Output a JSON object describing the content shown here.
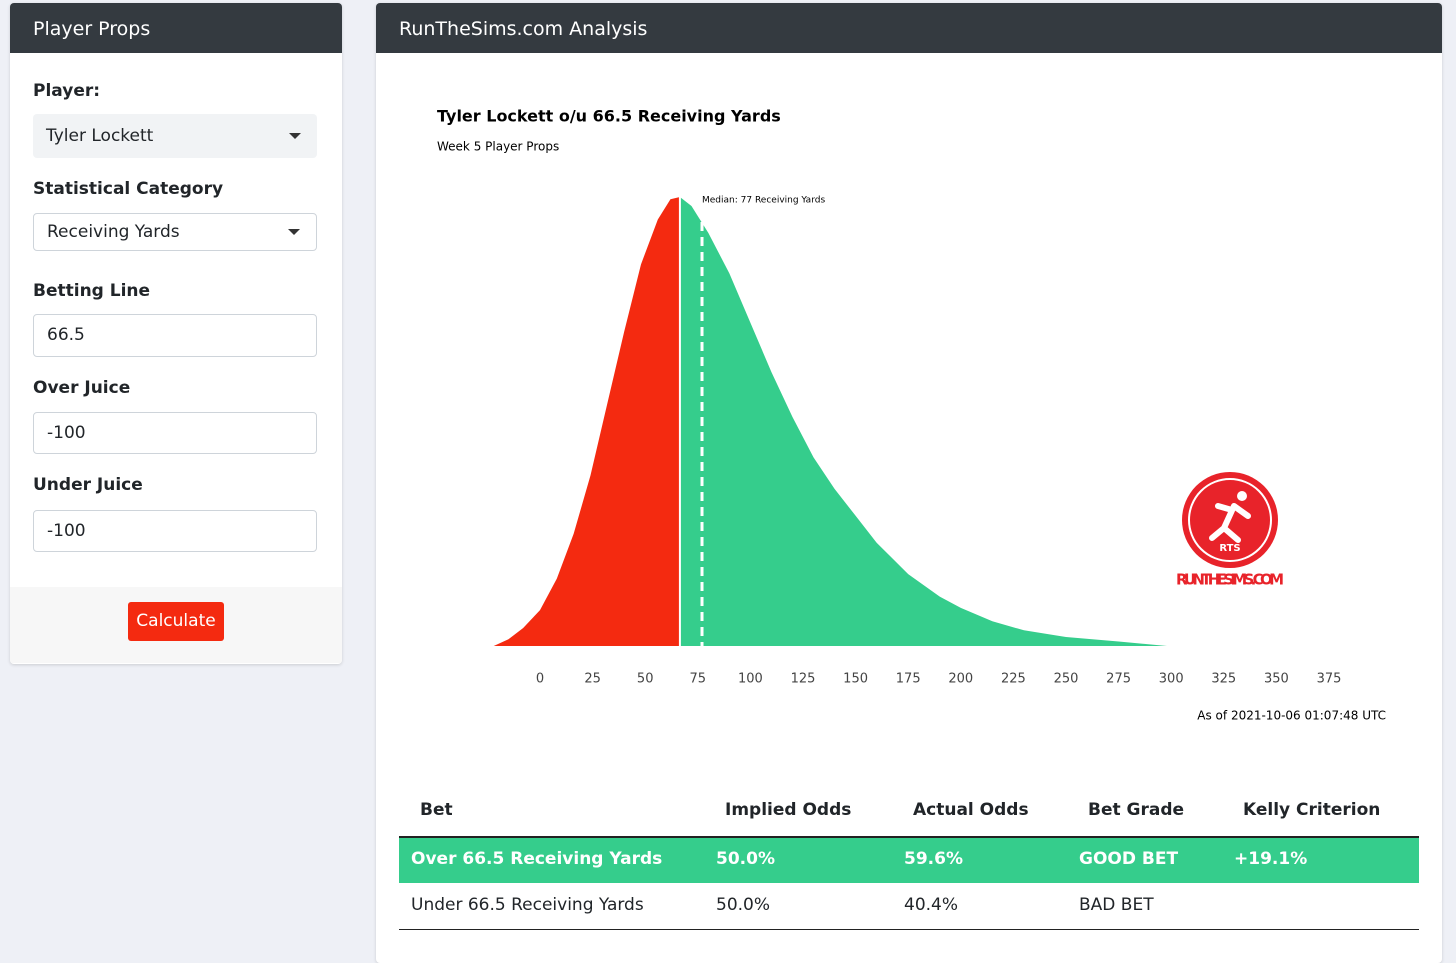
{
  "sidebar": {
    "header": "Player Props",
    "fields": [
      {
        "label": "Player:",
        "value": "Tyler Lockett"
      },
      {
        "label": "Statistical Category",
        "value": "Receiving Yards"
      },
      {
        "label": "Betting Line",
        "value": "66.5"
      },
      {
        "label": "Over Juice",
        "value": "-100"
      },
      {
        "label": "Under Juice",
        "value": "-100"
      }
    ],
    "button": "Calculate"
  },
  "analysis": {
    "header": "RunTheSims.com Analysis"
  },
  "logo": {
    "mark": "RTS",
    "text": "RUNTHESIMS.COM"
  },
  "chart_data": {
    "type": "area",
    "title": "Tyler Lockett o/u 66.5 Receiving Yards",
    "subtitle": "Week 5 Player Props",
    "x": [
      -22,
      -15,
      -8,
      0,
      8,
      16,
      24,
      32,
      40,
      48,
      56,
      62,
      66.5,
      72,
      80,
      90,
      100,
      110,
      120,
      130,
      140,
      150,
      160,
      175,
      190,
      200,
      215,
      230,
      250,
      275,
      298
    ],
    "values": [
      0,
      1.5,
      4,
      8,
      15,
      25,
      38,
      54,
      70,
      85,
      95,
      99.5,
      100,
      98,
      92,
      83,
      72,
      61,
      51,
      42,
      35,
      29,
      23,
      16,
      11,
      8.5,
      5.5,
      3.5,
      2,
      1,
      0
    ],
    "split": 66.5,
    "under_color": "#f42a10",
    "over_color": "#35cd8c",
    "median": 77,
    "median_label": "Median: 77 Receiving Yards",
    "annotation": "As of 2021-10-06 01:07:48 UTC",
    "xlim": [
      -50,
      400
    ],
    "xticks": [
      0,
      25,
      50,
      75,
      100,
      125,
      150,
      175,
      200,
      225,
      250,
      275,
      300,
      325,
      350,
      375
    ],
    "ylim": [
      0,
      100
    ]
  },
  "table": {
    "headers": [
      "Bet",
      "Implied Odds",
      "Actual Odds",
      "Bet Grade",
      "Kelly Criterion"
    ],
    "rows": [
      [
        "Over 66.5 Receiving Yards",
        "50.0%",
        "59.6%",
        "GOOD BET",
        "+19.1%"
      ],
      [
        "Under 66.5 Receiving Yards",
        "50.0%",
        "40.4%",
        "BAD BET"
      ]
    ]
  }
}
